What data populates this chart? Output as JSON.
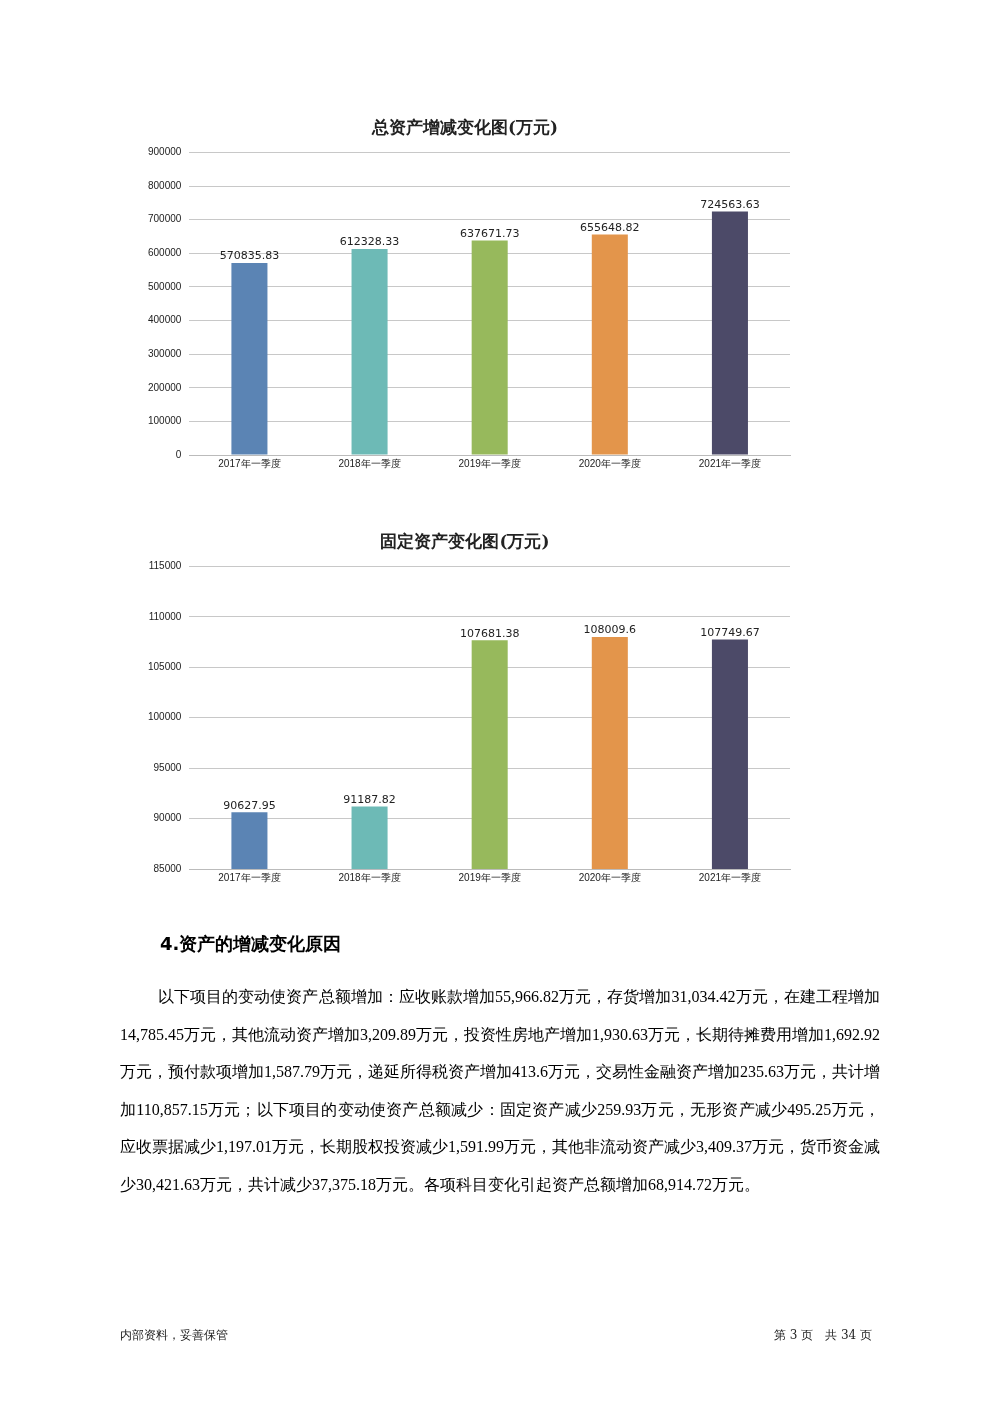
{
  "chart_data": [
    {
      "type": "bar",
      "title": "总资产增减变化图(万元)",
      "categories": [
        "2017年一季度",
        "2018年一季度",
        "2019年一季度",
        "2020年一季度",
        "2021年一季度"
      ],
      "values": [
        570835.83,
        612328.33,
        637671.73,
        655648.82,
        724563.63
      ],
      "colors": [
        "#5b84b4",
        "#6dbab6",
        "#97b95c",
        "#e3954b",
        "#4c4a68"
      ],
      "ylim": [
        0,
        900000
      ],
      "yticks": [
        0,
        100000,
        200000,
        300000,
        400000,
        500000,
        600000,
        700000,
        800000,
        900000
      ],
      "grid": "y",
      "data_labels": true
    },
    {
      "type": "bar",
      "title": "固定资产变化图(万元)",
      "categories": [
        "2017年一季度",
        "2018年一季度",
        "2019年一季度",
        "2020年一季度",
        "2021年一季度"
      ],
      "values": [
        90627.95,
        91187.82,
        107681.38,
        108009.6,
        107749.67
      ],
      "colors": [
        "#5b84b4",
        "#6dbab6",
        "#97b95c",
        "#e3954b",
        "#4c4a68"
      ],
      "ylim": [
        85000,
        115000
      ],
      "yticks": [
        85000,
        90000,
        95000,
        100000,
        105000,
        110000,
        115000
      ],
      "grid": "y",
      "data_labels": true
    },
    {
      "type": "other",
      "title": "4.资产的增减变化原因",
      "annotations": [
        "以下项目的变动使资产总额增加：应收账款增加55,966.82万元，存货增加31,034.42万元，在建工程增加14,785.45万元，其他流动资产增加3,209.89万元，投资性房地产增加1,930.63万元，长期待摊费用增加1,692.92万元，预付款项增加1,587.79万元，递延所得税资产增加413.6万元，交易性金融资产增加235.63万元，共计增加110,857.15万元；以下项目的变动使资产总额减少：固定资产减少259.93万元，无形资产减少495.25万元，应收票据减少1,197.01万元，长期股权投资减少1,591.99万元，其他非流动资产减少3,409.37万元，货币资金减少30,421.63万元，共计减少37,375.18万元。各项科目变化引起资产总额增加68,914.72万元。",
        "内部资料，妥善保管",
        "第 3 页　共 34 页"
      ]
    }
  ]
}
